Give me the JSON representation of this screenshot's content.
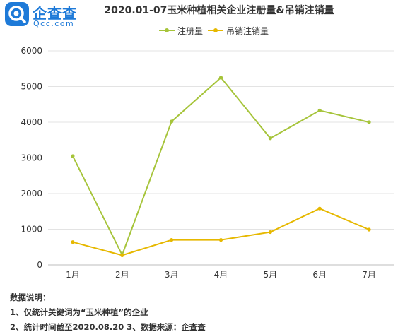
{
  "brand": {
    "name_cn": "企查查",
    "name_en": "Qcc.com"
  },
  "colors": {
    "registered": "#a6c43a",
    "cancelled": "#e6b800",
    "grid": "#e3e3e3",
    "brand": "#1e7ad8"
  },
  "chart_data": {
    "type": "line",
    "title": "2020.01-07玉米种植相关企业注册量&吊销注销量",
    "categories": [
      "1月",
      "2月",
      "3月",
      "4月",
      "5月",
      "6月",
      "7月"
    ],
    "series": [
      {
        "name": "注册量",
        "values": [
          3050,
          280,
          4020,
          5250,
          3550,
          4330,
          4000
        ]
      },
      {
        "name": "吊销注销量",
        "values": [
          640,
          270,
          700,
          700,
          920,
          1580,
          990
        ]
      }
    ],
    "ylim": [
      0,
      6000
    ],
    "yticks": [
      0,
      1000,
      2000,
      3000,
      4000,
      5000,
      6000
    ],
    "grid": true,
    "legend": "top-center"
  },
  "notes": {
    "heading": "数据说明：",
    "line1": "1、仅统计关键词为“玉米种植”的企业",
    "line2": "2、统计时间截至2020.08.20 3、数据来源：企查查"
  }
}
